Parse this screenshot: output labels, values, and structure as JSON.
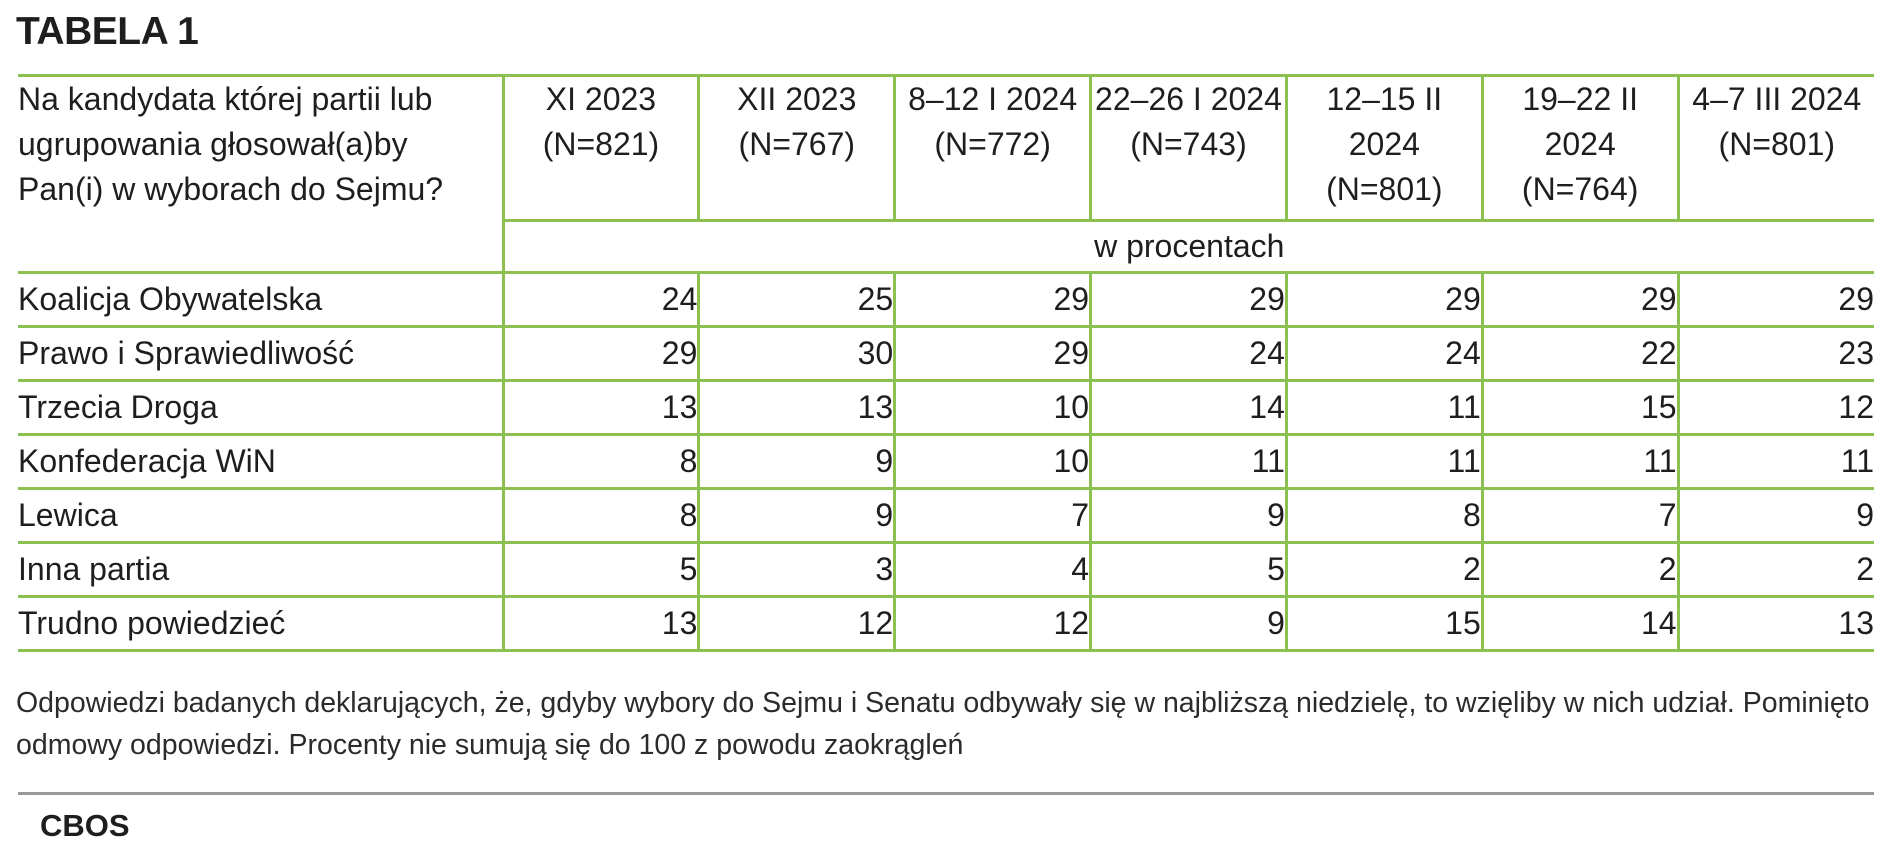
{
  "title": "TABELA 1",
  "table": {
    "question": "Na kandydata której partii lub ugrupowania głosował(a)by Pan(i) w wyborach do Sejmu?",
    "unit": "w procentach",
    "columns": [
      {
        "period": "XI 2023",
        "n": "(N=821)"
      },
      {
        "period": "XII 2023",
        "n": "(N=767)"
      },
      {
        "period": "8–12 I 2024",
        "n": "(N=772)"
      },
      {
        "period": "22–26 I 2024",
        "n": "(N=743)"
      },
      {
        "period": "12–15 II 2024",
        "n": "(N=801)"
      },
      {
        "period": "19–22 II 2024",
        "n": "(N=764)"
      },
      {
        "period": "4–7 III 2024",
        "n": "(N=801)"
      }
    ],
    "rows": [
      {
        "party": "Koalicja Obywatelska",
        "values": [
          24,
          25,
          29,
          29,
          29,
          29,
          29
        ]
      },
      {
        "party": "Prawo i Sprawiedliwość",
        "values": [
          29,
          30,
          29,
          24,
          24,
          22,
          23
        ]
      },
      {
        "party": "Trzecia Droga",
        "values": [
          13,
          13,
          10,
          14,
          11,
          15,
          12
        ]
      },
      {
        "party": "Konfederacja WiN",
        "values": [
          8,
          9,
          10,
          11,
          11,
          11,
          11
        ]
      },
      {
        "party": "Lewica",
        "values": [
          8,
          9,
          7,
          9,
          8,
          7,
          9
        ]
      },
      {
        "party": "Inna partia",
        "values": [
          5,
          3,
          4,
          5,
          2,
          2,
          2
        ]
      },
      {
        "party": "Trudno powiedzieć",
        "values": [
          13,
          12,
          12,
          9,
          15,
          14,
          13
        ]
      }
    ]
  },
  "note": "Odpowiedzi badanych deklarujących, że, gdyby wybory do Sejmu i Senatu odbywały się w najbliższą niedzielę, to wzięliby w nich udział. Pominięto odmowy odpowiedzi. Procenty nie sumują się do 100 z powodu zaokrągleń",
  "source": "CBOS",
  "colors": {
    "rule": "#8cc152",
    "text": "#1e1e1e",
    "divider": "#9a9a9a"
  }
}
